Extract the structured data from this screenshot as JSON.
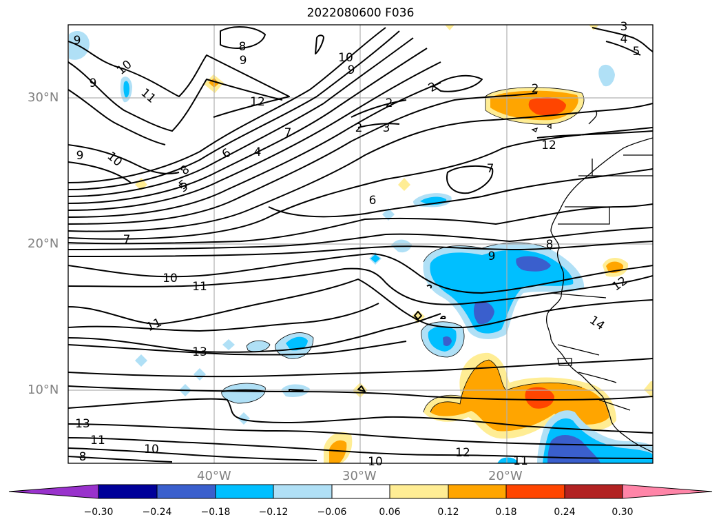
{
  "title": "2022080600 F036",
  "map": {
    "lat_labels": [
      "30°N",
      "20°N",
      "10°N"
    ],
    "lon_labels": [
      "40°W",
      "30°W",
      "20°W"
    ],
    "contour_labels": [
      "9",
      "9",
      "10",
      "11",
      "12",
      "10",
      "9",
      "2",
      "2",
      "2",
      "3",
      "2",
      "4",
      "5",
      "6",
      "7",
      "8",
      "5",
      "9",
      "10",
      "6",
      "7",
      "8",
      "7",
      "9",
      "10",
      "11",
      "11",
      "13",
      "13",
      "11",
      "10",
      "10",
      "12",
      "11",
      "12",
      "14",
      "8",
      "9",
      "3",
      "4",
      "5",
      "8",
      "12"
    ]
  },
  "colorbar": {
    "ticks": [
      "−0.30",
      "−0.24",
      "−0.18",
      "−0.12",
      "−0.06",
      "0.06",
      "0.12",
      "0.18",
      "0.24",
      "0.30"
    ],
    "colors": {
      "under": "#9932cc",
      "bins": [
        "#000099",
        "#3a5fcd",
        "#00bfff",
        "#b0e0f6",
        "#ffffff",
        "#ffed94",
        "#ffa500",
        "#ff4500",
        "#b22222"
      ],
      "over": "#ff85a8"
    }
  },
  "colors": {
    "grid": "#b0b0b0",
    "contour": "#000000",
    "coast": "#000000"
  }
}
